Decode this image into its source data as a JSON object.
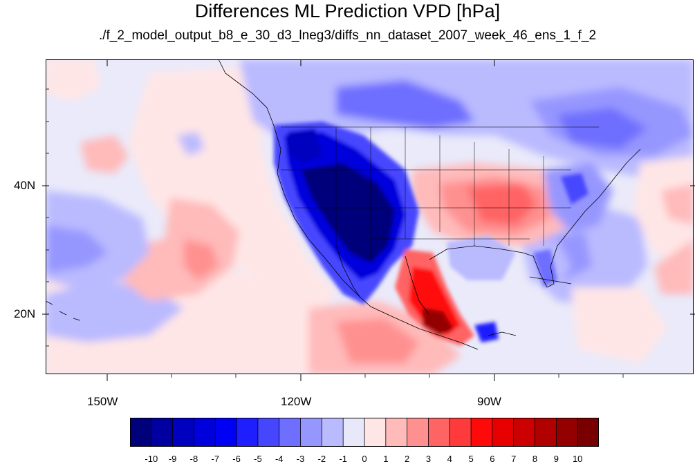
{
  "title": "Differences ML Prediction VPD [hPa]",
  "subtitle": "./f_2_model_output_b8_e_30_d3_lneg3/diffs_nn_dataset_2007_week_46_ens_1_f_2",
  "map": {
    "lon_ticks": [
      "150W",
      "120W",
      "90W"
    ],
    "lat_ticks": [
      "40N",
      "20N"
    ],
    "background_color": "#eaeafa"
  },
  "colorbar": {
    "labels": [
      "-10",
      "-9",
      "-8",
      "-7",
      "-6",
      "-5",
      "-4",
      "-3",
      "-2",
      "-1",
      "0",
      "1",
      "2",
      "3",
      "4",
      "5",
      "6",
      "7",
      "8",
      "9",
      "10"
    ],
    "colors": [
      "#00007a",
      "#0000a0",
      "#0000bf",
      "#0000dc",
      "#0000f5",
      "#1e1eff",
      "#4646ff",
      "#6e6eff",
      "#9696ff",
      "#babaff",
      "#e8e8fa",
      "#ffe6e6",
      "#ffbaba",
      "#ff9090",
      "#ff6464",
      "#ff3a3a",
      "#ff0a0a",
      "#e80000",
      "#cc0000",
      "#b00000",
      "#940000",
      "#780000"
    ]
  }
}
